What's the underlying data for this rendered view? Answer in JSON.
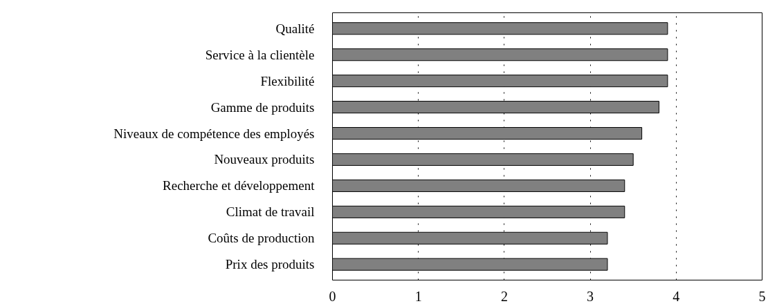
{
  "chart_data": {
    "type": "bar",
    "orientation": "horizontal",
    "categories": [
      "Qualité",
      "Service à la clientèle",
      "Flexibilité",
      "Gamme de produits",
      "Niveaux de compétence des employés",
      "Nouveaux produits",
      "Recherche et développement",
      "Climat de travail",
      "Coûts de production",
      "Prix des produits"
    ],
    "values": [
      3.9,
      3.9,
      3.9,
      3.8,
      3.6,
      3.5,
      3.4,
      3.4,
      3.2,
      3.2
    ],
    "color": "#808080",
    "xlim": [
      0,
      5
    ],
    "xticks": [
      0,
      1,
      2,
      3,
      4,
      5
    ],
    "grid": "x"
  }
}
